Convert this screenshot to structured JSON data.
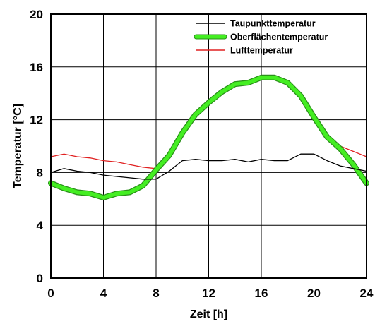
{
  "chart_data": {
    "type": "line",
    "title": "",
    "xlabel": "Zeit [h]",
    "ylabel": "Temperatur [°C]",
    "xlim": [
      0,
      24
    ],
    "ylim": [
      0,
      20
    ],
    "xticks": [
      0,
      4,
      8,
      12,
      16,
      20,
      24
    ],
    "yticks": [
      0,
      4,
      8,
      12,
      16,
      20
    ],
    "grid": true,
    "legend_position": "top-right",
    "series": [
      {
        "name": "Taupunkttemperatur",
        "color": "#000000",
        "style": "thin",
        "x": [
          0,
          1,
          2,
          3,
          4,
          5,
          6,
          7,
          8,
          9,
          10,
          11,
          12,
          13,
          14,
          15,
          16,
          17,
          18,
          19,
          20,
          21,
          22,
          23,
          24
        ],
        "y": [
          8.0,
          8.3,
          8.1,
          8.0,
          7.8,
          7.7,
          7.6,
          7.5,
          7.5,
          8.1,
          8.9,
          9.0,
          8.9,
          8.9,
          9.0,
          8.8,
          9.0,
          8.9,
          8.9,
          9.4,
          9.4,
          8.9,
          8.5,
          8.3,
          8.1
        ]
      },
      {
        "name": "Oberflächentemperatur",
        "color": "#44ee22",
        "style": "thick",
        "x": [
          0,
          1,
          2,
          3,
          4,
          5,
          6,
          7,
          8,
          9,
          10,
          11,
          12,
          13,
          14,
          15,
          16,
          17,
          18,
          19,
          20,
          21,
          22,
          23,
          24
        ],
        "y": [
          7.2,
          6.8,
          6.5,
          6.4,
          6.1,
          6.4,
          6.5,
          7.0,
          8.2,
          9.3,
          11.0,
          12.4,
          13.3,
          14.1,
          14.7,
          14.8,
          15.2,
          15.2,
          14.8,
          13.8,
          12.2,
          10.7,
          9.8,
          8.6,
          7.2
        ]
      },
      {
        "name": "Lufttemperatur",
        "color": "#e02020",
        "style": "thin",
        "x": [
          0,
          1,
          2,
          3,
          4,
          5,
          6,
          7,
          8,
          9,
          10,
          11,
          12,
          13,
          14,
          15,
          16,
          17,
          18,
          19,
          20,
          21,
          22,
          23,
          24
        ],
        "y": [
          9.2,
          9.4,
          9.2,
          9.1,
          8.9,
          8.8,
          8.6,
          8.4,
          8.3,
          9.3,
          11.1,
          12.6,
          13.3,
          14.1,
          14.8,
          14.9,
          15.2,
          15.2,
          14.9,
          13.9,
          12.3,
          10.8,
          10.0,
          9.6,
          9.2
        ]
      }
    ]
  }
}
